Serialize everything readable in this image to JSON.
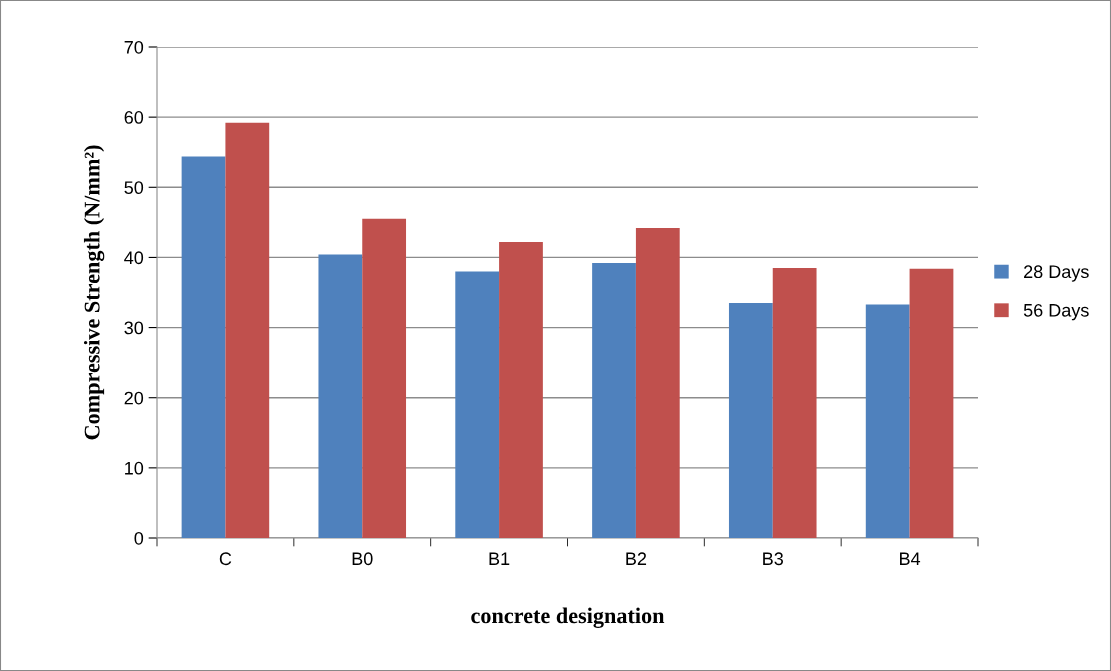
{
  "chart_data": {
    "type": "bar",
    "xlabel": "concrete designation",
    "ylabel": "Compressive Strength (N/mm²)",
    "categories": [
      "C",
      "B0",
      "B1",
      "B2",
      "B3",
      "B4"
    ],
    "series": [
      {
        "name": "28 Days",
        "color": "#4f81bd",
        "values": [
          54.4,
          40.4,
          38.0,
          39.2,
          33.5,
          33.3
        ]
      },
      {
        "name": "56 Days",
        "color": "#c0504d",
        "values": [
          59.2,
          45.5,
          42.2,
          44.2,
          38.5,
          38.4
        ]
      }
    ],
    "ylim": [
      0,
      70
    ],
    "yticks": [
      0,
      10,
      20,
      30,
      40,
      50,
      60,
      70
    ],
    "grid": "y",
    "legend": "right"
  }
}
